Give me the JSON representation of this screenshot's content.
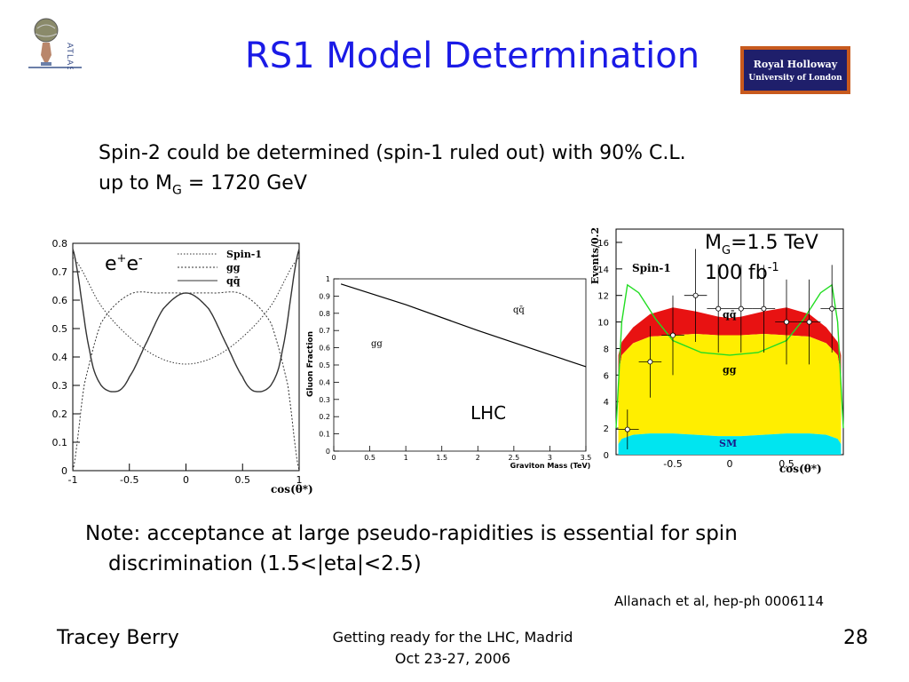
{
  "slide": {
    "title": "RS1 Model Determination",
    "statement_line1": "Spin-2 could be determined (spin-1 ruled out) with 90% C.L.",
    "statement_line2_prefix": "up to M",
    "statement_line2_sub": "G",
    "statement_line2_suffix": " = 1720 GeV",
    "note_line1": "Note: acceptance at large pseudo-rapidities is essential for spin",
    "note_line2": "discrimination (1.5<|eta|<2.5)",
    "citation": "Allanach et al, hep-ph 0006114",
    "footer_author": "Tracey Berry",
    "footer_center_line1": "Getting ready for the LHC, Madrid",
    "footer_center_line2": "Oct 23-27, 2006",
    "page_number": "28"
  },
  "logos": {
    "atlas_text": "ATLAS",
    "rhul_line1": "Royal Holloway",
    "rhul_line2": "University of London",
    "rhul_color": "#1f1f6b",
    "rhul_border": "#c85a1e"
  },
  "chart_data": [
    {
      "type": "line",
      "label_base": "e",
      "label_sup1": "+",
      "label_mid": "e",
      "label_sup2": "-",
      "xlabel": "cos(θ*)",
      "xlim": [
        -1,
        1
      ],
      "ylim": [
        0,
        0.8
      ],
      "x_ticks": [
        "-1",
        "-0.5",
        "0",
        "0.5",
        "1"
      ],
      "y_ticks": [
        "0",
        "0.1",
        "0.2",
        "0.3",
        "0.4",
        "0.5",
        "0.6",
        "0.7",
        "0.8"
      ],
      "legend": [
        "Spin-1",
        "gg",
        "qq̄"
      ],
      "series": [
        {
          "name": "Spin-1",
          "style": "dotted",
          "x": [
            -1,
            -0.75,
            -0.5,
            -0.25,
            0,
            0.25,
            0.5,
            0.75,
            1
          ],
          "y": [
            0.75,
            0.58,
            0.47,
            0.4,
            0.375,
            0.4,
            0.47,
            0.58,
            0.75
          ]
        },
        {
          "name": "gg",
          "style": "dashed",
          "x": [
            -1,
            -0.9,
            -0.75,
            -0.5,
            -0.25,
            0,
            0.25,
            0.5,
            0.75,
            0.9,
            1
          ],
          "y": [
            0,
            0.3,
            0.52,
            0.62,
            0.625,
            0.625,
            0.625,
            0.62,
            0.52,
            0.3,
            0
          ]
        },
        {
          "name": "qq̄",
          "style": "solid",
          "x": [
            -1,
            -0.85,
            -0.75,
            -0.6,
            -0.5,
            -0.35,
            -0.2,
            0,
            0.2,
            0.35,
            0.5,
            0.6,
            0.75,
            0.85,
            1
          ],
          "y": [
            0.78,
            0.42,
            0.3,
            0.28,
            0.33,
            0.45,
            0.57,
            0.625,
            0.57,
            0.45,
            0.33,
            0.28,
            0.3,
            0.42,
            0.78
          ]
        }
      ]
    },
    {
      "type": "line",
      "xlabel": "Graviton Mass (TeV)",
      "ylabel": "Gluon Fraction",
      "xlim": [
        0,
        3.5
      ],
      "ylim": [
        0,
        1.0
      ],
      "x_ticks": [
        "0",
        "0.5",
        "1",
        "1.5",
        "2",
        "2.5",
        "3",
        "3.5"
      ],
      "y_ticks": [
        "0",
        "0.1",
        "0.2",
        "0.3",
        "0.4",
        "0.5",
        "0.6",
        "0.7",
        "0.8",
        "0.9",
        "1"
      ],
      "region_labels": [
        "qq̄",
        "gg"
      ],
      "annotation": "LHC",
      "series": [
        {
          "x": [
            0.1,
            1.0,
            2.0,
            3.0,
            3.5
          ],
          "y": [
            0.97,
            0.85,
            0.7,
            0.56,
            0.49
          ]
        }
      ]
    },
    {
      "type": "area",
      "ylabel": "Events/0.2",
      "xlabel": "cos(θ*)",
      "xlim": [
        -1,
        1
      ],
      "ylim": [
        0,
        17
      ],
      "x_ticks": [
        "-0.5",
        "0",
        "0.5"
      ],
      "y_ticks": [
        "0",
        "2",
        "4",
        "6",
        "8",
        "10",
        "12",
        "14",
        "16"
      ],
      "annotation_line1_prefix": "M",
      "annotation_line1_sub": "G",
      "annotation_line1_suffix": "=1.5 TeV",
      "annotation_line2_prefix": "100 fb",
      "annotation_line2_sup": "-1",
      "stack_labels": [
        "Spin-1",
        "qq̄",
        "gg",
        "SM"
      ],
      "x": [
        -0.98,
        -0.95,
        -0.85,
        -0.7,
        -0.5,
        -0.3,
        -0.1,
        0,
        0.1,
        0.3,
        0.5,
        0.7,
        0.85,
        0.95,
        0.98
      ],
      "sm": [
        0.8,
        1.2,
        1.5,
        1.6,
        1.6,
        1.5,
        1.4,
        1.4,
        1.4,
        1.5,
        1.6,
        1.6,
        1.5,
        1.2,
        0.8
      ],
      "gg": [
        6.0,
        7.5,
        8.4,
        8.9,
        9.0,
        9.1,
        9.0,
        9.0,
        9.0,
        9.1,
        9.0,
        8.9,
        8.4,
        7.5,
        6.0
      ],
      "qq": [
        7.5,
        8.5,
        9.6,
        10.6,
        11.1,
        10.8,
        10.4,
        10.3,
        10.4,
        10.8,
        11.1,
        10.6,
        9.6,
        8.5,
        7.5
      ],
      "spin1_x": [
        -1,
        -0.95,
        -0.9,
        -0.8,
        -0.65,
        -0.5,
        -0.25,
        0,
        0.25,
        0.5,
        0.65,
        0.8,
        0.9,
        0.95,
        1
      ],
      "spin1_y": [
        2,
        10,
        12.8,
        12.2,
        10.2,
        8.6,
        7.7,
        7.5,
        7.7,
        8.6,
        10.2,
        12.2,
        12.8,
        10,
        2
      ],
      "points": [
        {
          "x": -0.9,
          "y": 1.9,
          "err": 1.5
        },
        {
          "x": -0.7,
          "y": 7.0,
          "err": 2.7
        },
        {
          "x": -0.5,
          "y": 9.0,
          "err": 3.0
        },
        {
          "x": -0.3,
          "y": 12.0,
          "err": 3.5
        },
        {
          "x": -0.1,
          "y": 11.0,
          "err": 3.3
        },
        {
          "x": 0.1,
          "y": 11.0,
          "err": 3.3
        },
        {
          "x": 0.3,
          "y": 11.0,
          "err": 3.3
        },
        {
          "x": 0.5,
          "y": 10.0,
          "err": 3.2
        },
        {
          "x": 0.7,
          "y": 10.0,
          "err": 3.2
        },
        {
          "x": 0.9,
          "y": 11.0,
          "err": 3.3
        }
      ]
    }
  ]
}
